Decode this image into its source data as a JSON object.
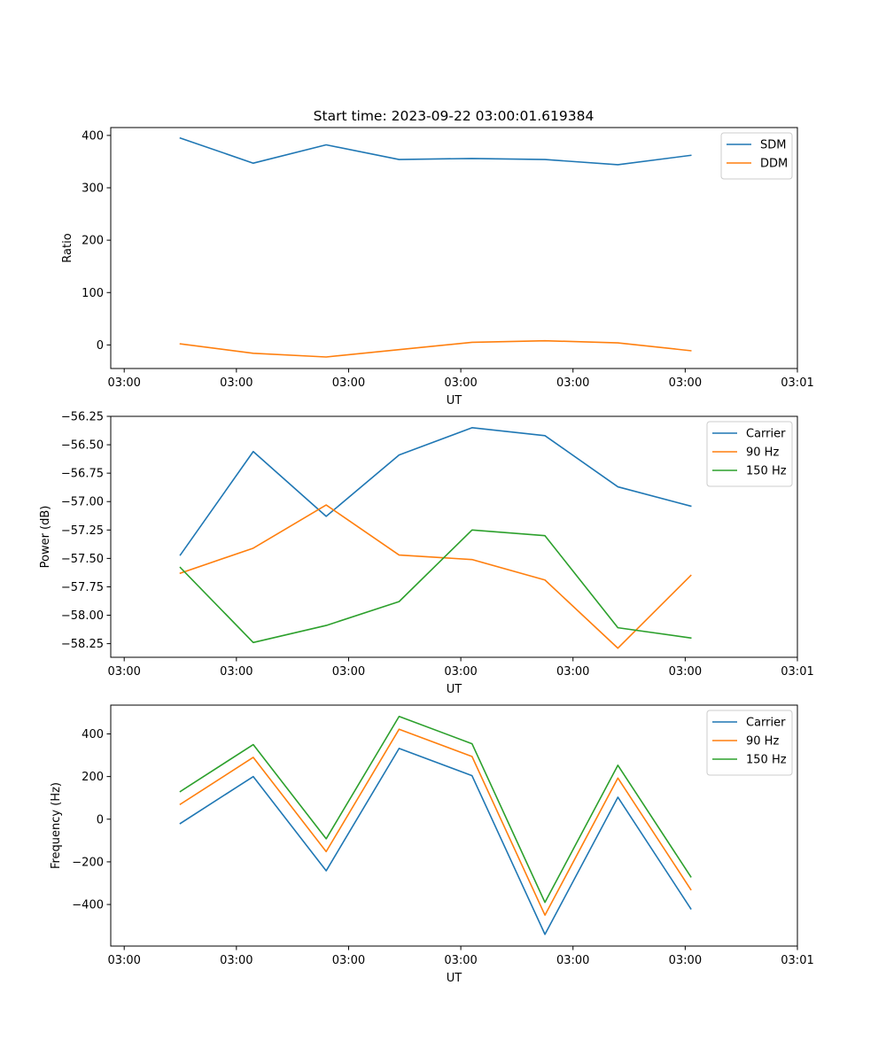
{
  "figure_title": "Start time: 2023-09-22 03:00:01.619384",
  "colors": {
    "blue": "#1f77b4",
    "orange": "#ff7f0e",
    "green": "#2ca02c"
  },
  "chart_data": [
    {
      "id": "ratio",
      "type": "line",
      "title": "Start time: 2023-09-22 03:00:01.619384",
      "xlabel": "UT",
      "ylabel": "Ratio",
      "x_tick_labels": [
        "03:00",
        "03:00",
        "03:00",
        "03:00",
        "03:00",
        "03:00",
        "03:01"
      ],
      "x_tick_positions": [
        0,
        1,
        2,
        3,
        4,
        5,
        6
      ],
      "x": [
        0.5,
        1.15,
        1.8,
        2.45,
        3.1,
        3.75,
        4.4,
        5.05
      ],
      "xlim": [
        -0.12,
        6.0
      ],
      "yticks": [
        0,
        100,
        200,
        300,
        400
      ],
      "ylim": [
        -45,
        415
      ],
      "legend_position": "top-right",
      "series": [
        {
          "name": "SDM",
          "color": "#1f77b4",
          "values": [
            395,
            347,
            382,
            354,
            356,
            354,
            344,
            362
          ]
        },
        {
          "name": "DDM",
          "color": "#ff7f0e",
          "values": [
            2,
            -16,
            -23,
            -9,
            5,
            8,
            4,
            -11
          ]
        }
      ]
    },
    {
      "id": "power",
      "type": "line",
      "title": "",
      "xlabel": "UT",
      "ylabel": "Power (dB)",
      "x_tick_labels": [
        "03:00",
        "03:00",
        "03:00",
        "03:00",
        "03:00",
        "03:00",
        "03:01"
      ],
      "x_tick_positions": [
        0,
        1,
        2,
        3,
        4,
        5,
        6
      ],
      "x": [
        0.5,
        1.15,
        1.8,
        2.45,
        3.1,
        3.75,
        4.4,
        5.05
      ],
      "xlim": [
        -0.12,
        6.0
      ],
      "yticks": [
        -58.25,
        -58.0,
        -57.75,
        -57.5,
        -57.25,
        -57.0,
        -56.75,
        -56.5,
        -56.25
      ],
      "ytick_labels": [
        "−58.25",
        "−58.00",
        "−57.75",
        "−57.50",
        "−57.25",
        "−57.00",
        "−56.75",
        "−56.50",
        "−56.25"
      ],
      "ylim": [
        -58.37,
        -56.25
      ],
      "legend_position": "top-right",
      "series": [
        {
          "name": "Carrier",
          "color": "#1f77b4",
          "values": [
            -57.47,
            -56.56,
            -57.13,
            -56.59,
            -56.35,
            -56.42,
            -56.87,
            -57.04
          ]
        },
        {
          "name": "90 Hz",
          "color": "#ff7f0e",
          "values": [
            -57.63,
            -57.41,
            -57.03,
            -57.47,
            -57.51,
            -57.69,
            -58.29,
            -57.65
          ]
        },
        {
          "name": "150 Hz",
          "color": "#2ca02c",
          "values": [
            -57.58,
            -58.24,
            -58.09,
            -57.88,
            -57.25,
            -57.3,
            -58.11,
            -58.2
          ]
        }
      ]
    },
    {
      "id": "frequency",
      "type": "line",
      "title": "",
      "xlabel": "UT",
      "ylabel": "Frequency (Hz)",
      "x_tick_labels": [
        "03:00",
        "03:00",
        "03:00",
        "03:00",
        "03:00",
        "03:00",
        "03:01"
      ],
      "x_tick_positions": [
        0,
        1,
        2,
        3,
        4,
        5,
        6
      ],
      "x": [
        0.5,
        1.15,
        1.8,
        2.45,
        3.1,
        3.75,
        4.4,
        5.05
      ],
      "xlim": [
        -0.12,
        6.0
      ],
      "yticks": [
        -400,
        -200,
        0,
        200,
        400
      ],
      "ytick_labels": [
        "−400",
        "−200",
        "0",
        "200",
        "400"
      ],
      "ylim": [
        -595,
        535
      ],
      "legend_position": "top-right",
      "series": [
        {
          "name": "Carrier",
          "color": "#1f77b4",
          "values": [
            -20,
            200,
            -242,
            332,
            204,
            -540,
            103,
            -420
          ]
        },
        {
          "name": "90 Hz",
          "color": "#ff7f0e",
          "values": [
            70,
            290,
            -152,
            422,
            294,
            -450,
            193,
            -330
          ]
        },
        {
          "name": "150 Hz",
          "color": "#2ca02c",
          "values": [
            130,
            350,
            -92,
            482,
            354,
            -390,
            253,
            -270
          ]
        }
      ]
    }
  ]
}
